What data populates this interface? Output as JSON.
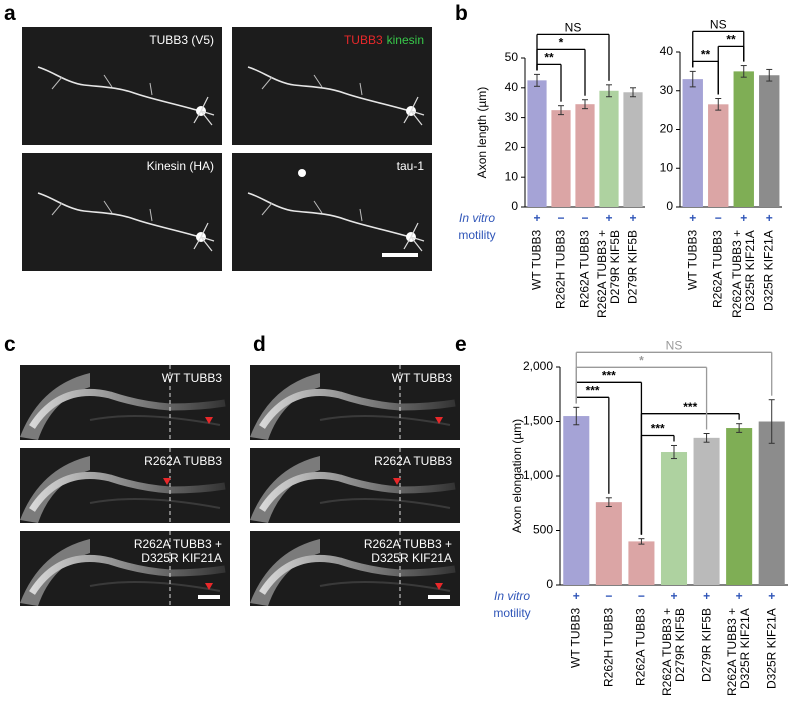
{
  "panel_labels": [
    "a",
    "b",
    "c",
    "d",
    "e"
  ],
  "panel_a": {
    "images": [
      {
        "label": "TUBB3 (V5)"
      },
      {
        "label_parts": [
          "TUBB3",
          "kinesin"
        ]
      },
      {
        "label": "Kinesin (HA)"
      },
      {
        "label": "tau-1"
      }
    ]
  },
  "panel_c": {
    "labels": [
      "WT TUBB3",
      "R262A TUBB3",
      "R262A TUBB3 + D325R KIF21A"
    ]
  },
  "panel_d": {
    "labels": [
      "WT TUBB3",
      "R262A TUBB3",
      "R262A TUBB3 + D325R KIF21A"
    ]
  },
  "chart_data": [
    {
      "type": "bar",
      "ylabel": "Axon length (µm)",
      "categories": [
        "WT TUBB3",
        "R262H TUBB3",
        "R262A TUBB3",
        "R262A TUBB3 + D279R KIF5B",
        "D279R KIF5B"
      ],
      "values": [
        42.5,
        32.5,
        34.5,
        39,
        38.5
      ],
      "errors": [
        2,
        1.5,
        1.5,
        2,
        1.5
      ],
      "colors": [
        "#a5a3d6",
        "#dba5a5",
        "#dba5a5",
        "#aed2a0",
        "#bababa"
      ],
      "motility": [
        "+",
        "−",
        "−",
        "+",
        "+"
      ],
      "motility_label": [
        "In vitro",
        "motility"
      ],
      "ylim": [
        0,
        50
      ],
      "yticks": [
        0,
        10,
        20,
        30,
        40,
        50
      ],
      "significance": [
        {
          "from": 0,
          "to": 1,
          "label": "**"
        },
        {
          "from": 0,
          "to": 2,
          "label": "*"
        },
        {
          "from": 0,
          "to": 3,
          "label": "NS"
        }
      ]
    },
    {
      "type": "bar",
      "categories": [
        "WT TUBB3",
        "R262A TUBB3",
        "R262A TUBB3 + D325R KIF21A",
        "D325R KIF21A"
      ],
      "values": [
        33,
        26.5,
        35,
        34
      ],
      "errors": [
        2,
        1.5,
        1.5,
        1.5
      ],
      "colors": [
        "#a5a3d6",
        "#dba5a5",
        "#7fae55",
        "#8c8c8c"
      ],
      "motility": [
        "+",
        "−",
        "+",
        "+"
      ],
      "ylim": [
        0,
        40
      ],
      "yticks": [
        0,
        10,
        20,
        30,
        40
      ],
      "significance": [
        {
          "from": 0,
          "to": 1,
          "label": "**"
        },
        {
          "from": 1,
          "to": 2,
          "label": "**"
        },
        {
          "from": 0,
          "to": 2,
          "label": "NS"
        }
      ]
    },
    {
      "type": "bar",
      "ylabel": "Axon elongation (µm)",
      "categories": [
        "WT TUBB3",
        "R262H TUBB3",
        "R262A TUBB3",
        "R262A TUBB3 + D279R KIF5B",
        "D279R KIF5B",
        "R262A TUBB3 + D325R KIF21A",
        "D325R KIF21A"
      ],
      "values": [
        1550,
        760,
        400,
        1220,
        1350,
        1440,
        1500
      ],
      "errors": [
        80,
        40,
        25,
        60,
        40,
        40,
        200
      ],
      "colors": [
        "#a5a3d6",
        "#dba5a5",
        "#dba5a5",
        "#aed2a0",
        "#bababa",
        "#7fae55",
        "#8c8c8c"
      ],
      "motility": [
        "+",
        "−",
        "−",
        "+",
        "+",
        "+",
        "+"
      ],
      "motility_label": [
        "In vitro",
        "motility"
      ],
      "ylim": [
        0,
        2000
      ],
      "yticks": [
        0,
        500,
        {
          "value": 1000,
          "label": "1,000"
        },
        {
          "value": 1500,
          "label": "1,500"
        },
        {
          "value": 2000,
          "label": "2,000"
        }
      ],
      "significance": [
        {
          "from": 0,
          "to": 1,
          "label": "***"
        },
        {
          "from": 2,
          "to": 3,
          "label": "***"
        },
        {
          "from": 0,
          "to": 2,
          "label": "***"
        },
        {
          "from": 2,
          "to": 5,
          "label": "***"
        },
        {
          "from": 0,
          "to": 4,
          "label": "*",
          "color": "#9a9a9a"
        },
        {
          "from": 0,
          "to": 6,
          "label": "NS",
          "color": "#9a9a9a"
        }
      ]
    }
  ]
}
